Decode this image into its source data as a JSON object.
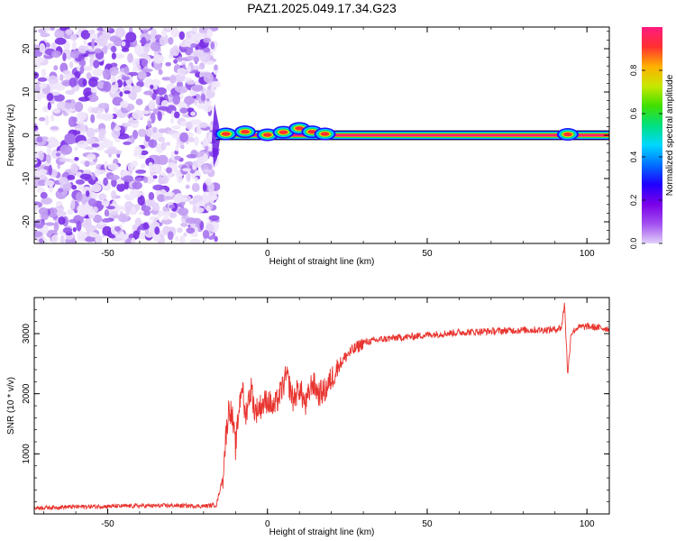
{
  "title": "PAZ1.2025.049.17.34.G23",
  "colors": {
    "background": "#ffffff",
    "axis": "#000000",
    "snr_line": "#e8332e",
    "colorbar_stops": [
      "#e0d0f8",
      "#a24ff0",
      "#7a00e8",
      "#2000ff",
      "#0070ff",
      "#00d8ff",
      "#00e080",
      "#40e000",
      "#c8e800",
      "#ffb000",
      "#ff3030",
      "#ff1a80"
    ]
  },
  "chart_data": [
    {
      "type": "heatmap",
      "name": "spectrogram",
      "title": "PAZ1.2025.049.17.34.G23",
      "xlabel": "Height of straight line (km)",
      "ylabel": "Frequency (Hz)",
      "xlim": [
        -73,
        107
      ],
      "ylim": [
        -25,
        25
      ],
      "xticks": [
        -50,
        0,
        50,
        100
      ],
      "yticks": [
        -20,
        -10,
        0,
        10,
        20
      ],
      "noise_region_x": [
        -73,
        -16
      ],
      "signal_line_x": [
        -16,
        107
      ],
      "signal_line_freq": 0,
      "signal_bumps": [
        {
          "x": -13,
          "freq": 0.3
        },
        {
          "x": -7,
          "freq": 0.8
        },
        {
          "x": 0,
          "freq": 0.1
        },
        {
          "x": 5,
          "freq": 0.7
        },
        {
          "x": 10,
          "freq": 1.6
        },
        {
          "x": 14,
          "freq": 0.8
        },
        {
          "x": 18,
          "freq": 0.3
        },
        {
          "x": 94,
          "freq": 0.2
        }
      ],
      "colorbar": {
        "label": "Normalized spectral amplitude",
        "range": [
          0.0,
          1.0
        ],
        "ticks": [
          "0.0",
          "0.2",
          "0.4",
          "0.6",
          "0.8"
        ]
      }
    },
    {
      "type": "line",
      "name": "snr",
      "xlabel": "Height of straight line (km)",
      "ylabel": "SNR (10 * v/v)",
      "xlim": [
        -73,
        107
      ],
      "ylim": [
        0,
        3600
      ],
      "xticks": [
        -50,
        0,
        50,
        100
      ],
      "yticks": [
        1000,
        2000,
        3000
      ],
      "series": [
        {
          "name": "SNR",
          "x": [
            -73,
            -60,
            -45,
            -30,
            -20,
            -16,
            -14,
            -13,
            -12,
            -11,
            -10,
            -9,
            -8,
            -7,
            -6,
            -5,
            -4,
            -2,
            0,
            2,
            4,
            6,
            8,
            10,
            12,
            14,
            16,
            18,
            20,
            22,
            25,
            30,
            35,
            40,
            45,
            50,
            55,
            60,
            65,
            70,
            75,
            80,
            85,
            90,
            92,
            93,
            94,
            95,
            97,
            100,
            107
          ],
          "values": [
            100,
            120,
            130,
            140,
            130,
            150,
            600,
            1300,
            1800,
            1600,
            1100,
            1700,
            2200,
            1600,
            1900,
            2100,
            1700,
            1800,
            1900,
            1750,
            2000,
            2300,
            1900,
            2100,
            1800,
            2200,
            2000,
            2050,
            2250,
            2450,
            2650,
            2850,
            2900,
            2930,
            2950,
            2980,
            3000,
            3020,
            3030,
            3040,
            3050,
            3060,
            3060,
            3070,
            3100,
            3500,
            2300,
            3000,
            3100,
            3120,
            3080
          ]
        }
      ]
    }
  ]
}
